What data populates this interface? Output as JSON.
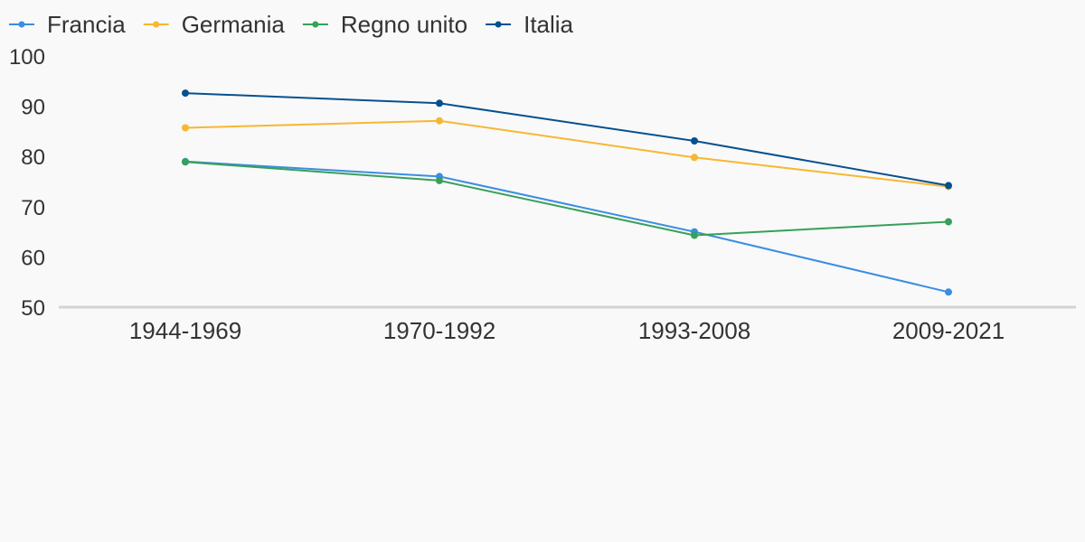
{
  "chart_data": {
    "type": "line",
    "categories": [
      "1944-1969",
      "1970-1992",
      "1993-2008",
      "2009-2021"
    ],
    "series": [
      {
        "name": "Francia",
        "color": "#3b8de2",
        "values": [
          79,
          76,
          65,
          53
        ]
      },
      {
        "name": "Germania",
        "color": "#f7b731",
        "values": [
          85.7,
          87.1,
          79.8,
          74
        ]
      },
      {
        "name": "Regno unito",
        "color": "#37a05a",
        "values": [
          78.9,
          75.2,
          64.3,
          67
        ]
      },
      {
        "name": "Italia",
        "color": "#07508f",
        "values": [
          92.6,
          90.6,
          83.1,
          74.2
        ]
      }
    ],
    "yticks": [
      50,
      60,
      70,
      80,
      90,
      100
    ],
    "ylim": [
      50,
      100
    ],
    "title": "",
    "xlabel": "",
    "ylabel": "",
    "grid": false,
    "legend_position": "top-left"
  }
}
